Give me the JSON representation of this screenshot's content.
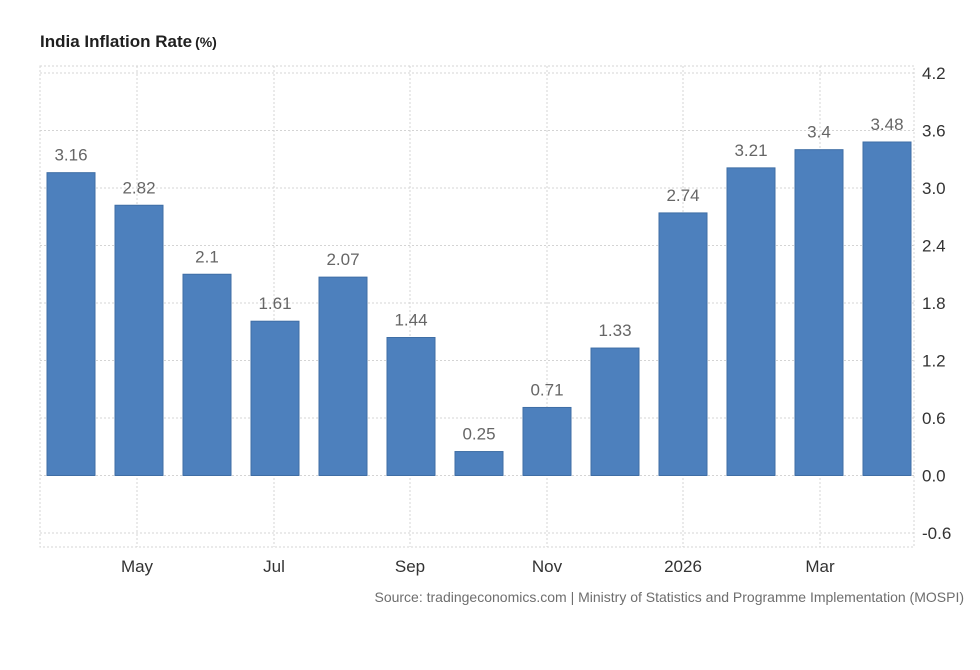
{
  "title": "India Inflation Rate",
  "title_unit": "(%)",
  "source": "Source: tradingeconomics.com | Ministry of Statistics and Programme Implementation (MOSPI)",
  "colors": {
    "bar": "#4d80bd",
    "bar_border": "#3f6ea5",
    "grid": "#d4d4d4",
    "label": "#666666",
    "tick": "#333333"
  },
  "chart_data": {
    "type": "bar",
    "series": [
      {
        "values": [
          3.16,
          2.82,
          2.1,
          1.61,
          2.07,
          1.44,
          0.25,
          0.71,
          1.33,
          2.74,
          3.21,
          3.4,
          3.48
        ]
      }
    ],
    "x_tick_labels": [
      "May",
      "Jul",
      "Sep",
      "Nov",
      "2026",
      "Mar"
    ],
    "y_tick_labels": [
      "4.2",
      "3.6",
      "3.0",
      "2.4",
      "1.8",
      "1.2",
      "0.6",
      "0.0",
      "-0.6"
    ],
    "ylim": [
      -0.6,
      4.2
    ],
    "grid": true,
    "y_axis_side": "right",
    "data_labels": true
  }
}
